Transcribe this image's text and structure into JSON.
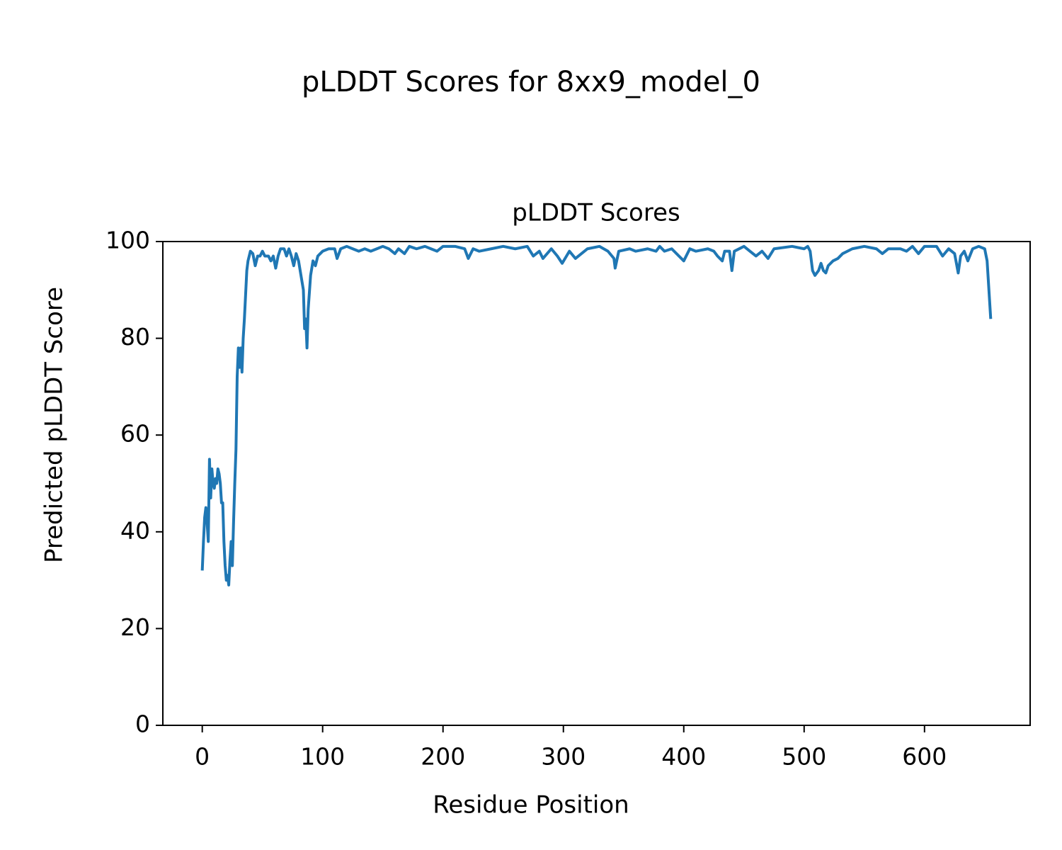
{
  "chart_data": {
    "type": "line",
    "suptitle": "pLDDT Scores for 8xx9_model_0",
    "title": "pLDDT Scores",
    "xlabel": "Residue Position",
    "ylabel": "Predicted pLDDT Score",
    "xlim": [
      -32.75,
      687.75
    ],
    "ylim": [
      0,
      100
    ],
    "xticks": [
      0,
      100,
      200,
      300,
      400,
      500,
      600
    ],
    "yticks": [
      0,
      20,
      40,
      60,
      80,
      100
    ],
    "grid": false,
    "series": [
      {
        "color": "#1f77b4",
        "x": [
          0,
          1,
          2,
          3,
          4,
          5,
          6,
          7,
          8,
          9,
          10,
          11,
          12,
          13,
          14,
          15,
          16,
          17,
          18,
          19,
          20,
          21,
          22,
          23,
          24,
          25,
          26,
          27,
          28,
          29,
          30,
          31,
          32,
          33,
          34,
          35,
          36,
          37,
          38,
          39,
          40,
          42,
          44,
          46,
          48,
          50,
          52,
          55,
          57,
          59,
          61,
          63,
          65,
          68,
          70,
          72,
          74,
          76,
          78,
          80,
          82,
          84,
          85,
          86,
          87,
          88,
          90,
          92,
          94,
          96,
          98,
          100,
          105,
          110,
          112,
          115,
          120,
          125,
          130,
          135,
          140,
          145,
          150,
          155,
          160,
          163,
          168,
          172,
          178,
          185,
          190,
          195,
          200,
          210,
          218,
          221,
          225,
          230,
          240,
          250,
          260,
          270,
          275,
          280,
          283,
          290,
          295,
          299,
          305,
          310,
          320,
          330,
          337,
          342,
          343,
          346,
          355,
          360,
          370,
          377,
          380,
          384,
          390,
          396,
          400,
          405,
          410,
          420,
          425,
          428,
          432,
          434,
          438,
          440,
          442,
          450,
          455,
          460,
          465,
          470,
          475,
          490,
          500,
          503,
          505,
          507,
          509,
          512,
          514,
          516,
          518,
          520,
          524,
          528,
          532,
          540,
          550,
          560,
          565,
          570,
          580,
          585,
          590,
          595,
          600,
          610,
          615,
          620,
          625,
          628,
          630,
          633,
          636,
          640,
          645,
          650,
          652,
          653,
          655
        ],
        "values": [
          32,
          38,
          43,
          45,
          42,
          38,
          55,
          47,
          53,
          50,
          49,
          51,
          50,
          53,
          52,
          50,
          46,
          46,
          38,
          33,
          30,
          31,
          29,
          34,
          38,
          33,
          42,
          50,
          57,
          72,
          78,
          74,
          78,
          73,
          80,
          84,
          89,
          94,
          96,
          97,
          98,
          97.5,
          95,
          97,
          97,
          98,
          97,
          97,
          96,
          97,
          94.5,
          97,
          98.5,
          98.5,
          97,
          98.5,
          97,
          95,
          97.5,
          96,
          93,
          90,
          82,
          84,
          78,
          86,
          93,
          96,
          95,
          97,
          97.5,
          98,
          98.5,
          98.5,
          96.5,
          98.5,
          99,
          98.5,
          98,
          98.5,
          98,
          98.5,
          99,
          98.5,
          97.5,
          98.5,
          97.5,
          99,
          98.5,
          99,
          98.5,
          98,
          99,
          99,
          98.5,
          96.5,
          98.5,
          98,
          98.5,
          99,
          98.5,
          99,
          97,
          98,
          96.5,
          98.5,
          97,
          95.5,
          98,
          96.5,
          98.5,
          99,
          98,
          96.5,
          94.5,
          98,
          98.5,
          98,
          98.5,
          98,
          99,
          98,
          98.5,
          97,
          96,
          98.5,
          98,
          98.5,
          98,
          97,
          96,
          98,
          98,
          94,
          98,
          99,
          98,
          97,
          98,
          96.5,
          98.5,
          99,
          98.5,
          99,
          98,
          94,
          93,
          94,
          95.5,
          94,
          93.5,
          95,
          96,
          96.5,
          97.5,
          98.5,
          99,
          98.5,
          97.5,
          98.5,
          98.5,
          98,
          99,
          97.5,
          99,
          99,
          97,
          98.5,
          97.5,
          93.5,
          97,
          98,
          96,
          98.5,
          99,
          98.5,
          96,
          92,
          84
        ]
      }
    ]
  }
}
